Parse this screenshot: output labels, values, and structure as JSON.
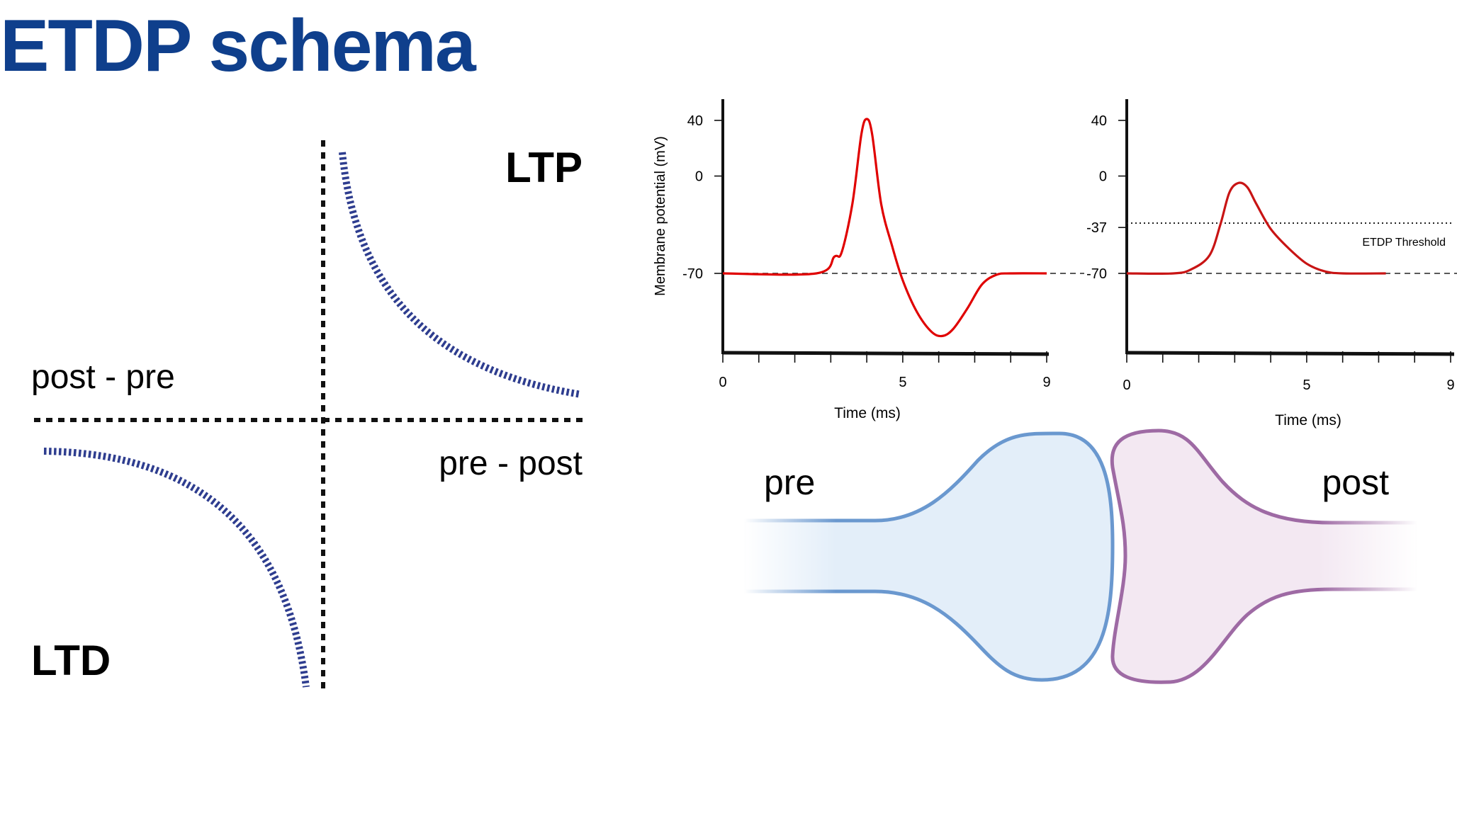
{
  "slide": {
    "title": "ETDP schema"
  },
  "stdp_diagram": {
    "ltp_label": "LTP",
    "ltd_label": "LTD",
    "upper_axis_label": "post - pre",
    "lower_axis_label": "pre - post",
    "curve_color": "#2e3d8f"
  },
  "chart_data": [
    {
      "type": "line",
      "title": "",
      "xlabel": "Time (ms)",
      "ylabel": "Membrane potential (mV)",
      "x_ticks": [
        0,
        5,
        9
      ],
      "y_ticks": [
        40,
        0,
        -70
      ],
      "xlim": [
        0,
        9
      ],
      "ylim": [
        -110,
        50
      ],
      "reference_line": {
        "y": -70,
        "style": "dashed"
      },
      "series": [
        {
          "color": "#e00000",
          "x": [
            0,
            2.6,
            3.1,
            3.3,
            3.6,
            3.85,
            4.0,
            4.15,
            4.4,
            4.7,
            5.0,
            5.4,
            5.8,
            6.1,
            6.4,
            6.8,
            7.2,
            7.6,
            8.0,
            9.0
          ],
          "y": [
            -70,
            -70,
            -58,
            -55,
            -20,
            30,
            41,
            30,
            -20,
            -50,
            -75,
            -98,
            -112,
            -115,
            -110,
            -95,
            -78,
            -71,
            -70,
            -70
          ]
        }
      ]
    },
    {
      "type": "line",
      "title": "",
      "xlabel": "Time (ms)",
      "ylabel": "",
      "x_ticks": [
        0,
        5,
        9
      ],
      "y_ticks": [
        40,
        0,
        -37,
        -70
      ],
      "xlim": [
        0,
        9
      ],
      "ylim": [
        -110,
        50
      ],
      "reference_line": {
        "y": -70,
        "style": "dashed"
      },
      "threshold": {
        "y": -37,
        "label": "ETDP Threshold",
        "style": "dotted"
      },
      "series": [
        {
          "color": "#c81414",
          "x": [
            0,
            1.3,
            1.8,
            2.3,
            2.6,
            2.85,
            3.1,
            3.35,
            3.6,
            4.0,
            4.5,
            5.0,
            5.5,
            6.0,
            7.2
          ],
          "y": [
            -70,
            -70,
            -67,
            -57,
            -35,
            -12,
            -5,
            -8,
            -20,
            -38,
            -52,
            -63,
            -68.5,
            -70,
            -70
          ]
        }
      ]
    }
  ],
  "synapse": {
    "pre_label": "pre",
    "post_label": "post",
    "pre_fill": "#e3eef9",
    "pre_stroke": "#6a98cf",
    "post_fill": "#f3e8f2",
    "post_stroke": "#9e6aa4"
  }
}
